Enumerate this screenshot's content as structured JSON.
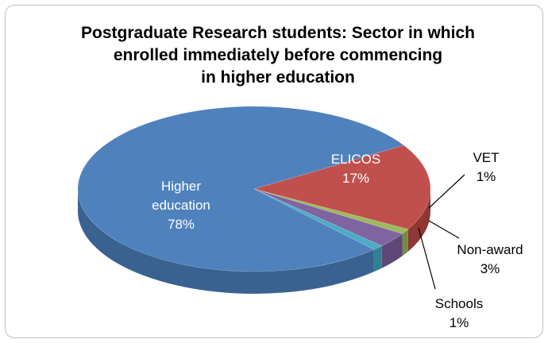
{
  "chart_data": {
    "type": "pie",
    "title_lines": [
      "Postgraduate Research students: Sector in which",
      "enrolled immediately before commencing",
      "in higher education"
    ],
    "slices": [
      {
        "name": "ELICOS",
        "value": 17,
        "label_lines": [
          "ELICOS",
          "17%"
        ],
        "color": "#c0504d",
        "side": "#8e3734"
      },
      {
        "name": "VET",
        "value": 1,
        "label_lines": [
          "VET",
          "1%"
        ],
        "color": "#9bbb59",
        "side": "#738d40"
      },
      {
        "name": "Non-award",
        "value": 3,
        "label_lines": [
          "Non-award",
          "3%"
        ],
        "color": "#8064a2",
        "side": "#5d4878"
      },
      {
        "name": "Schools",
        "value": 1,
        "label_lines": [
          "Schools",
          "1%"
        ],
        "color": "#4bacc6",
        "side": "#337f93"
      },
      {
        "name": "Higher education",
        "value": 78,
        "label_lines": [
          "Higher",
          "education",
          "78%"
        ],
        "color": "#4f81bd",
        "side": "#3a6291"
      }
    ]
  }
}
